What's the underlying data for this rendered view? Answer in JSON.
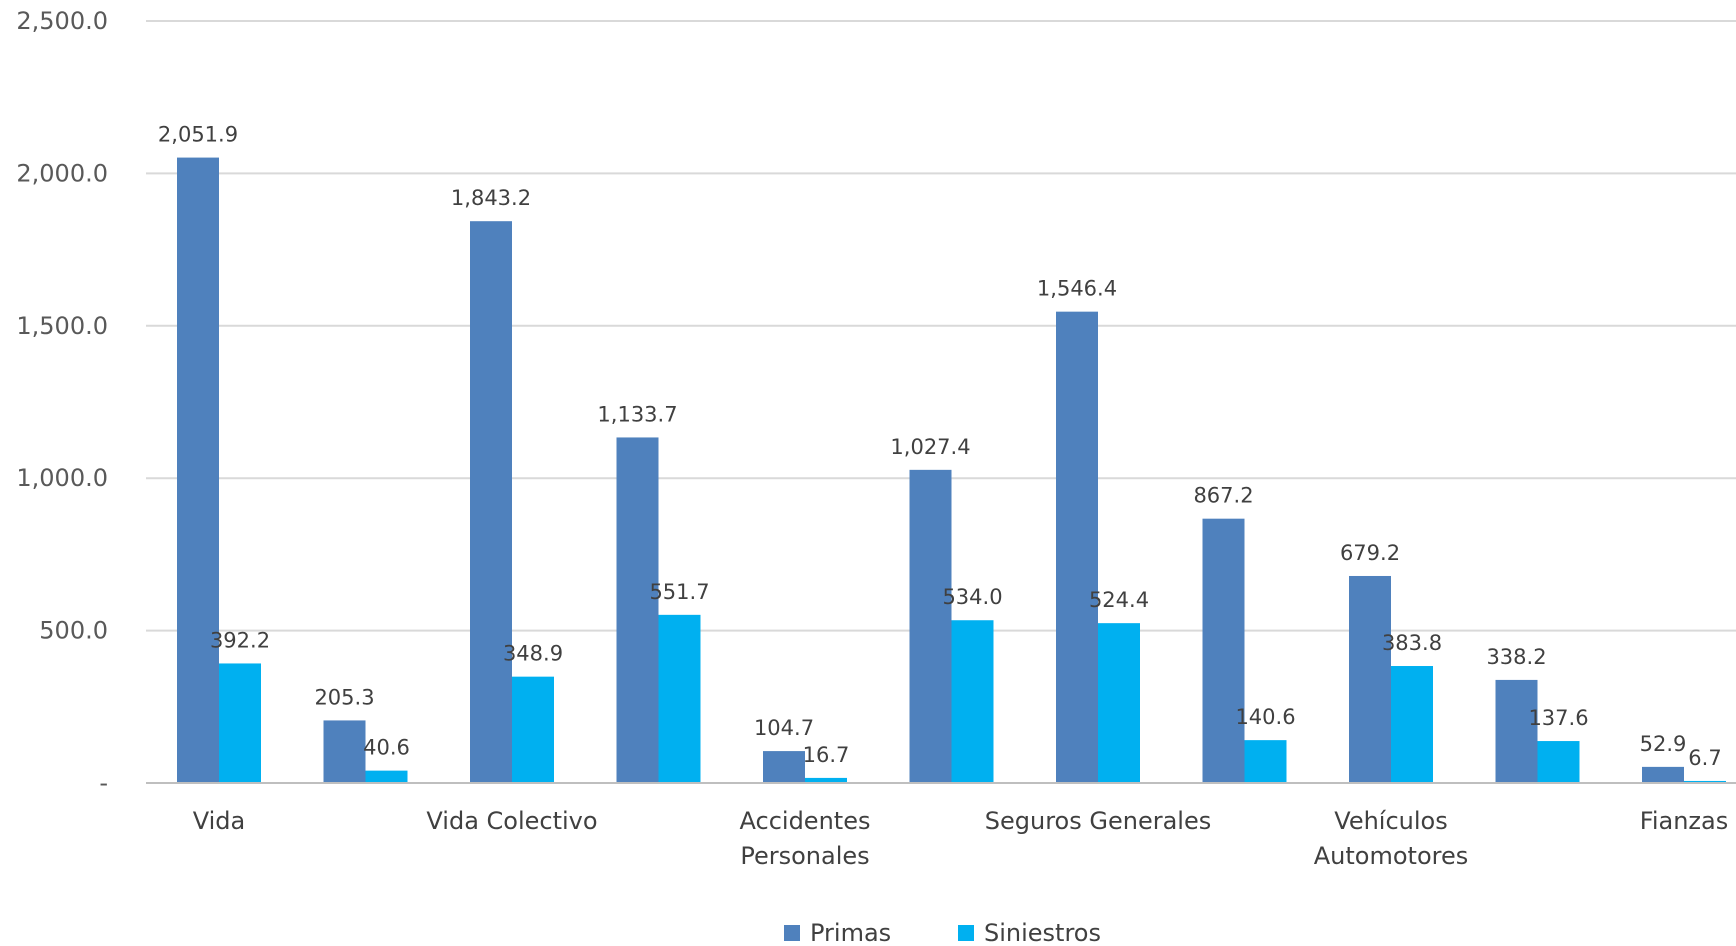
{
  "chart_data": {
    "type": "bar",
    "categories": [
      "Vida",
      "",
      "Vida Colectivo",
      "",
      "Accidentes Personales",
      "",
      "Seguros Generales",
      "",
      "Vehículos Automotores",
      "",
      "Fianzas"
    ],
    "category_label_lines": [
      [
        "Vida"
      ],
      [
        ""
      ],
      [
        "Vida Colectivo"
      ],
      [
        ""
      ],
      [
        "Accidentes",
        "Personales"
      ],
      [
        ""
      ],
      [
        "Seguros Generales"
      ],
      [
        ""
      ],
      [
        "Vehículos",
        "Automotores"
      ],
      [
        ""
      ],
      [
        "Fianzas"
      ]
    ],
    "series": [
      {
        "name": "Primas",
        "color": "#4F81BD",
        "values": [
          2051.9,
          205.3,
          1843.2,
          1133.7,
          104.7,
          1027.4,
          1546.4,
          867.2,
          679.2,
          338.2,
          52.9
        ],
        "labels": [
          "2,051.9",
          "205.3",
          "1,843.2",
          "1,133.7",
          "104.7",
          "1,027.4",
          "1,546.4",
          "867.2",
          "679.2",
          "338.2",
          "52.9"
        ]
      },
      {
        "name": "Siniestros",
        "color": "#00B0F0",
        "values": [
          392.2,
          40.6,
          348.9,
          551.7,
          16.7,
          534.0,
          524.4,
          140.6,
          383.8,
          137.6,
          6.7
        ],
        "labels": [
          "392.2",
          "40.6",
          "348.9",
          "551.7",
          "16.7",
          "534.0",
          "524.4",
          "140.6",
          "383.8",
          "137.6",
          "6.7"
        ]
      }
    ],
    "y_ticks": [
      0,
      500,
      1000,
      1500,
      2000,
      2500
    ],
    "y_tick_labels": [
      "-",
      "500.0",
      "1,000.0",
      "1,500.0",
      "2,000.0",
      "2,500.0"
    ],
    "ylim": [
      0,
      2500
    ],
    "title": "",
    "xlabel": "",
    "ylabel": "",
    "grid": true,
    "legend_position": "bottom",
    "colors": {
      "gridline": "#D9D9D9",
      "axis": "#BFBFBF"
    }
  }
}
